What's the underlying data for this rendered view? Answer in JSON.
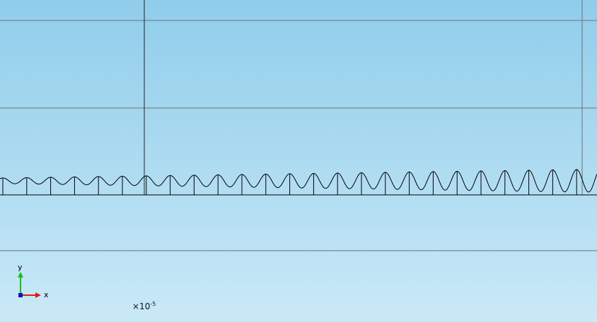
{
  "view": {
    "background_top": "#90cdeb",
    "background_bottom": "#cae9f7",
    "gridline_color": "#707070",
    "wave_color": "#000000"
  },
  "axes_triad": {
    "x_label": "x",
    "y_label": "y",
    "x_color": "#e01b1b",
    "y_color": "#16c216",
    "origin_color": "#1010c0"
  },
  "scale": {
    "prefix": "×10",
    "exponent": "-5"
  },
  "wave": {
    "cycles": 24,
    "amplitude_start": 0.25,
    "amplitude_end": 1.0
  }
}
